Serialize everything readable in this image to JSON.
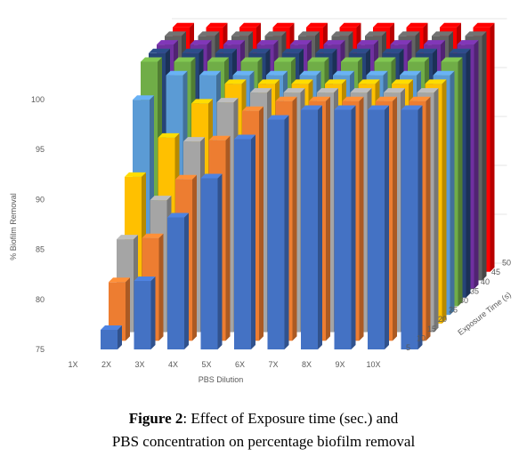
{
  "chart_data": {
    "type": "bar",
    "subtype": "3d-column",
    "categories": [
      "1X",
      "2X",
      "3X",
      "4X",
      "5X",
      "6X",
      "7X",
      "8X",
      "9X",
      "10X"
    ],
    "xlabel": "PBS Dilution",
    "ylabel": "% Biofilm Removal",
    "zlabel": "Exposure Time (s)",
    "ylim": [
      75,
      100
    ],
    "yticks": [
      "75",
      "80",
      "85",
      "90",
      "95",
      "100"
    ],
    "series": [
      {
        "name": "5",
        "color": "#4472C4",
        "values": [
          77,
          82,
          88.5,
          92.5,
          96.5,
          98.5,
          99.5,
          99.5,
          99.5,
          99.5
        ]
      },
      {
        "name": "10",
        "color": "#ED7D31",
        "values": [
          81,
          85.5,
          91.5,
          95.5,
          98.5,
          99.5,
          99.5,
          99.5,
          99.5,
          99.5
        ]
      },
      {
        "name": "15",
        "color": "#A5A5A5",
        "values": [
          84.5,
          88.5,
          94.5,
          98.5,
          99.5,
          99.5,
          99.5,
          99.5,
          99.5,
          99.5
        ]
      },
      {
        "name": "20",
        "color": "#FFC000",
        "values": [
          90,
          94,
          97.5,
          99.5,
          99.5,
          99.5,
          99.5,
          99.5,
          99.5,
          99.5
        ]
      },
      {
        "name": "25",
        "color": "#5B9BD5",
        "values": [
          97,
          99.5,
          99.5,
          99.5,
          99.5,
          99.5,
          99.5,
          99.5,
          99.5,
          99.5
        ]
      },
      {
        "name": "30",
        "color": "#70AD47",
        "values": [
          100,
          100,
          100,
          100,
          100,
          100,
          100,
          100,
          100,
          100
        ]
      },
      {
        "name": "35",
        "color": "#264478",
        "values": [
          100,
          100,
          100,
          100,
          100,
          100,
          100,
          100,
          100,
          100
        ]
      },
      {
        "name": "40",
        "color": "#7030A0",
        "values": [
          100,
          100,
          100,
          100,
          100,
          100,
          100,
          100,
          100,
          100
        ]
      },
      {
        "name": "45",
        "color": "#636363",
        "values": [
          100,
          100,
          100,
          100,
          100,
          100,
          100,
          100,
          100,
          100
        ]
      },
      {
        "name": "50",
        "color": "#FF0000",
        "values": [
          100,
          100,
          100,
          100,
          100,
          100,
          100,
          100,
          100,
          100
        ]
      }
    ],
    "grid": true
  },
  "caption": {
    "label": "Figure 2",
    "text": ": Effect of Exposure time (sec.) and",
    "line2": "PBS concentration on percentage biofilm removal"
  }
}
